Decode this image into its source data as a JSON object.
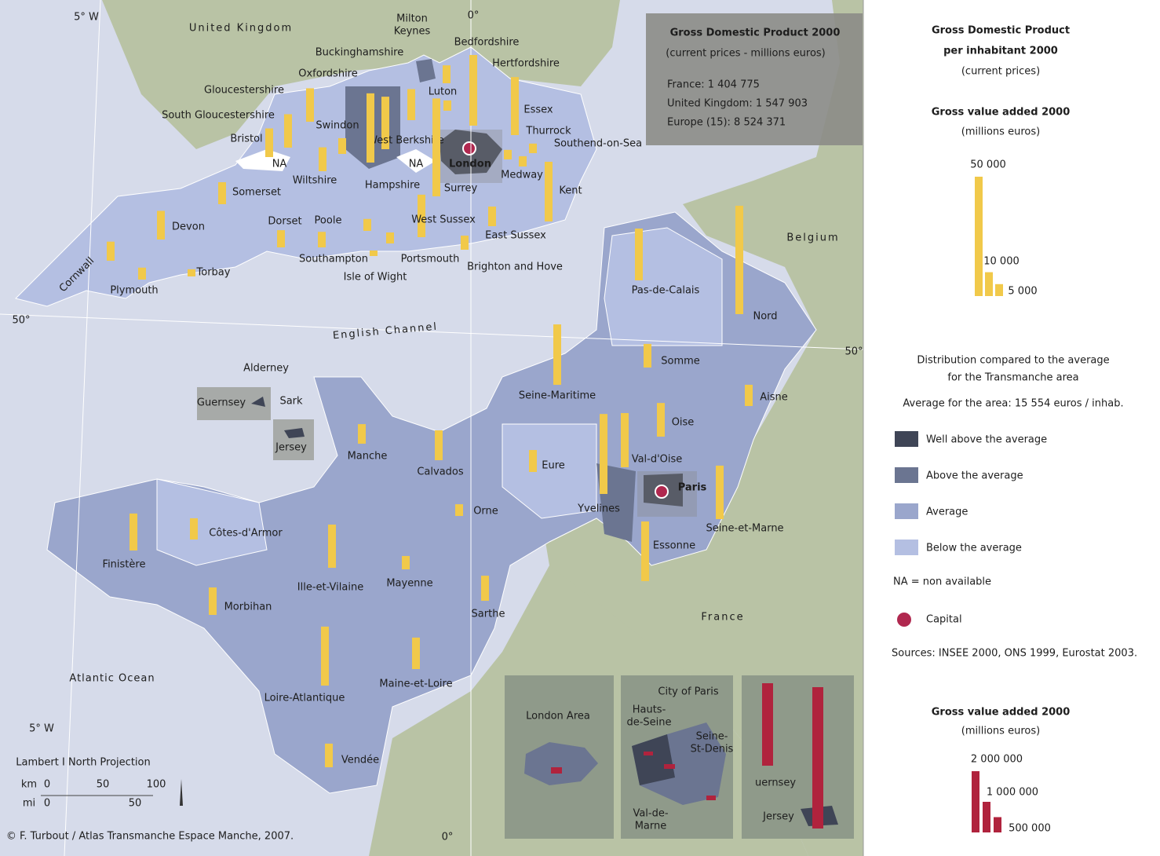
{
  "map": {
    "gdp_box": {
      "title": "Gross Domestic Product 2000",
      "subtitle": "(current prices - millions euros)",
      "lines": [
        "France: 1 404 775",
        "United Kingdom: 1 547 903",
        "Europe (15): 8 524 371"
      ]
    },
    "regions": [
      {
        "name": "Kent",
        "gva": 25000
      },
      {
        "name": "Essex",
        "gva": 24300
      },
      {
        "name": "Hertfordshire",
        "gva": 29600
      },
      {
        "name": "Bedfordshire",
        "gva": 7500
      },
      {
        "name": "Buckinghamshire",
        "gva": 13000
      },
      {
        "name": "Oxfordshire",
        "gva": 14000
      },
      {
        "name": "Gloucestershire",
        "gva": 14000
      },
      {
        "name": "Bristol",
        "gva": 12000
      },
      {
        "name": "Swindon",
        "gva": 6600
      },
      {
        "name": "West Berkshire",
        "gva": 22000
      },
      {
        "name": "Hampshire",
        "gva": 29000
      },
      {
        "name": "Surrey",
        "gva": 41000
      },
      {
        "name": "Wiltshire",
        "gva": 10000
      },
      {
        "name": "Somerset",
        "gva": 9200
      },
      {
        "name": "Devon",
        "gva": 12000
      },
      {
        "name": "Cornwall",
        "gva": 8000
      },
      {
        "name": "Plymouth",
        "gva": 5000
      },
      {
        "name": "Torbay",
        "gva": 3000
      },
      {
        "name": "Dorset",
        "gva": 7200
      },
      {
        "name": "Poole",
        "gva": 6500
      },
      {
        "name": "Southampton",
        "gva": 5000
      },
      {
        "name": "Portsmouth",
        "gva": 4600
      },
      {
        "name": "Isle of Wight",
        "gva": 2300
      },
      {
        "name": "West Sussex",
        "gva": 17800
      },
      {
        "name": "East Sussex",
        "gva": 8200
      },
      {
        "name": "Brighton and Hove",
        "gva": 5900
      },
      {
        "name": "Medway",
        "gva": 4300
      },
      {
        "name": "Thurrock",
        "gva": 4000
      },
      {
        "name": "Southend-on-Sea",
        "gva": 4000
      },
      {
        "name": "Luton",
        "gva": 4300
      },
      {
        "name": "Pas-de-Calais",
        "gva": 21700
      },
      {
        "name": "Nord",
        "gva": 45400
      },
      {
        "name": "Somme",
        "gva": 9900
      },
      {
        "name": "Aisne",
        "gva": 8900
      },
      {
        "name": "Oise",
        "gva": 14100
      },
      {
        "name": "Val-d'Oise",
        "gva": 22700
      },
      {
        "name": "Yvelines",
        "gva": 33500
      },
      {
        "name": "Seine-et-Marne",
        "gva": 22400
      },
      {
        "name": "Essonne",
        "gva": 25000
      },
      {
        "name": "Seine-Maritime",
        "gva": 25300
      },
      {
        "name": "Eure",
        "gva": 9200
      },
      {
        "name": "Calvados",
        "gva": 12500
      },
      {
        "name": "Manche",
        "gva": 8200
      },
      {
        "name": "Orne",
        "gva": 4900
      },
      {
        "name": "Finistère",
        "gva": 15500
      },
      {
        "name": "Côtes-d'Armor",
        "gva": 8900
      },
      {
        "name": "Morbihan",
        "gva": 11500
      },
      {
        "name": "Ille-et-Vilaine",
        "gva": 18100
      },
      {
        "name": "Mayenne",
        "gva": 5600
      },
      {
        "name": "Sarthe",
        "gva": 10500
      },
      {
        "name": "Maine-et-Loire",
        "gva": 13200
      },
      {
        "name": "Loire-Atlantique",
        "gva": 24700
      },
      {
        "name": "Vendée",
        "gva": 9900
      }
    ],
    "labels": [
      "United Kingdom",
      "Belgium",
      "France",
      "English Channel",
      "Atlantic Ocean",
      "Alderney",
      "Guernsey",
      "Sark",
      "Jersey",
      "Milton",
      "Keynes",
      "South Gloucestershire",
      "NA",
      "NA",
      "London",
      "Paris"
    ],
    "graticule": [
      "5° W",
      "0°",
      "50°",
      "50°",
      "5° W",
      "0°"
    ],
    "insets": [
      "London Area",
      "City of Paris",
      "Hauts-",
      "de-Seine",
      "Seine-",
      "St-Denis",
      "Val-de-",
      "Marne",
      "uernsey",
      "Jersey"
    ],
    "footer": {
      "projection": "Lambert I North Projection",
      "km": "km",
      "mi": "mi",
      "km_ticks": [
        "0",
        "50",
        "100"
      ],
      "mi_ticks": [
        "0",
        "50"
      ],
      "copyright": "© F. Turbout / Atlas Transmanche Espace Manche, 2007."
    }
  },
  "legend": {
    "title": [
      "Gross Domestic Product",
      "per inhabitant 2000",
      "(current prices)"
    ],
    "gva_title": [
      "Gross value added 2000",
      "(millions euros)"
    ],
    "gva_scale": [
      {
        "value": 50000,
        "label": "50 000"
      },
      {
        "value": 10000,
        "label": "10 000"
      },
      {
        "value": 5000,
        "label": "5 000"
      }
    ],
    "distribution_title": [
      "Distribution compared to the average",
      "for the Transmanche area"
    ],
    "average": "Average for the area: 15 554 euros / inhab.",
    "classes": [
      {
        "label": "Well above the average",
        "color": "#3f4556"
      },
      {
        "label": "Above the average",
        "color": "#6b7591"
      },
      {
        "label": "Average",
        "color": "#9aa6cc"
      },
      {
        "label": "Below the average",
        "color": "#b4bfe2"
      }
    ],
    "na": "NA = non available",
    "capital": "Capital",
    "sources": "Sources: INSEE 2000, ONS 1999, Eurostat 2003.",
    "gva2_title": [
      "Gross value added 2000",
      "(millions euros)"
    ],
    "gva2_scale": [
      {
        "value": 2000000,
        "label": "2 000 000"
      },
      {
        "value": 1000000,
        "label": "1 000 000"
      },
      {
        "value": 500000,
        "label": "500 000"
      }
    ]
  }
}
